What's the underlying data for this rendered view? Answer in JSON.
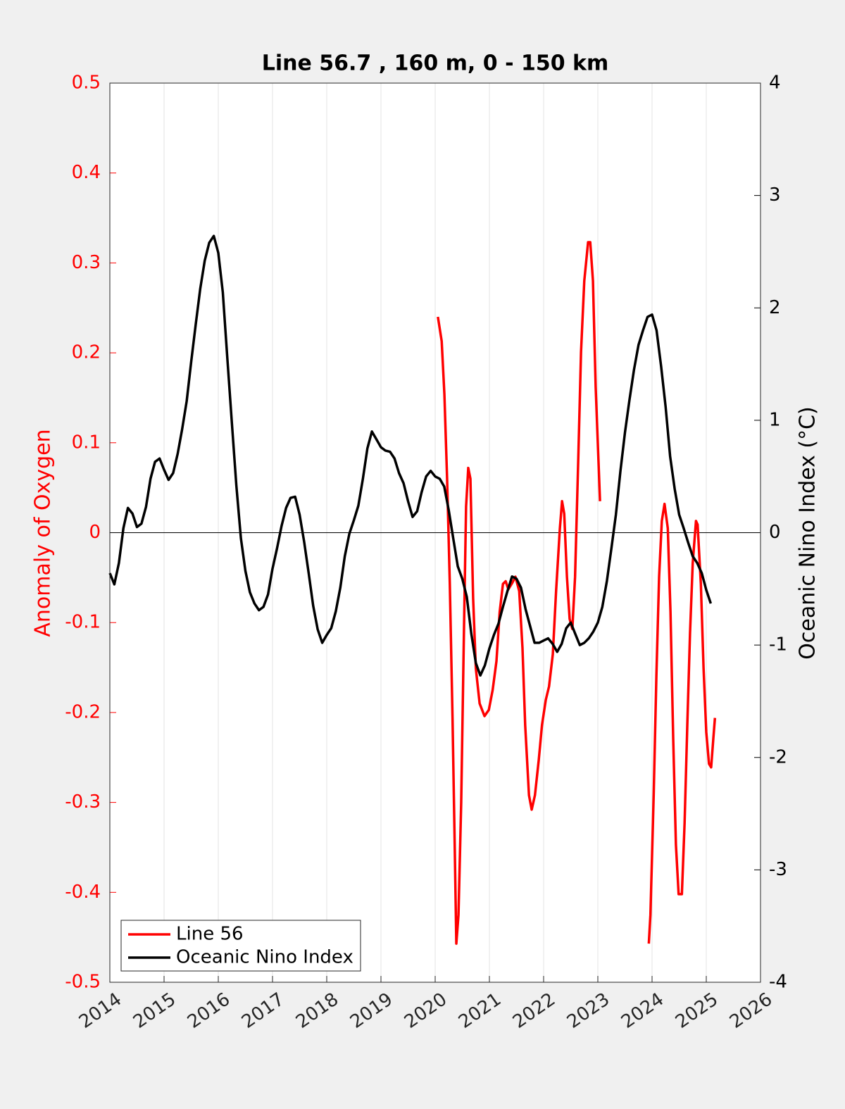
{
  "chart_data": {
    "type": "line",
    "title": "Line 56.7 , 160 m, 0 - 150 km",
    "y_label": "Anomaly of Oxygen",
    "y2_label": "Oceanic Nino Index (°C)",
    "xlim": [
      2014,
      2026
    ],
    "xticks": [
      2014,
      2015,
      2016,
      2017,
      2018,
      2019,
      2020,
      2021,
      2022,
      2023,
      2024,
      2025,
      2026
    ],
    "ylim": [
      -0.5,
      0.5
    ],
    "yticks": [
      -0.5,
      -0.4,
      -0.3,
      -0.2,
      -0.1,
      0,
      0.1,
      0.2,
      0.3,
      0.4,
      0.5
    ],
    "y2lim": [
      -4,
      4
    ],
    "y2ticks": [
      -4,
      -3,
      -2,
      -1,
      0,
      1,
      2,
      3,
      4
    ],
    "grid": "x",
    "zero_line": true,
    "legend": "southwest",
    "y_label_color": "#ff0000",
    "series": [
      {
        "name": "Line 56",
        "color": "#ff0000",
        "axis": "y",
        "x": [
          2020.05,
          2020.12,
          2020.17,
          2020.22,
          2020.27,
          2020.32,
          2020.36,
          2020.39,
          2020.43,
          2020.48,
          2020.53,
          2020.57,
          2020.61,
          2020.65,
          2020.7,
          2020.75,
          2020.82,
          2020.91,
          2020.99,
          2021.06,
          2021.13,
          2021.19,
          2021.25,
          2021.3,
          2021.35,
          2021.42,
          2021.48,
          2021.55,
          2021.61,
          2021.66,
          2021.73,
          2021.78,
          2021.84,
          2021.91,
          2021.97,
          2022.04,
          2022.1,
          2022.17,
          2022.23,
          2022.3,
          2022.34,
          2022.38,
          2022.43,
          2022.48,
          2022.53,
          2022.58,
          2022.64,
          2022.69,
          2022.75,
          2022.82,
          2022.86,
          2022.91,
          2022.96,
          2023.04,
          2023.5,
          2023.94,
          2023.97,
          2024.03,
          2024.08,
          2024.13,
          2024.18,
          2024.23,
          2024.29,
          2024.34,
          2024.39,
          2024.44,
          2024.49,
          2024.55,
          2024.6,
          2024.65,
          2024.7,
          2024.75,
          2024.81,
          2024.84,
          2024.9,
          2024.95,
          2025.0,
          2025.05,
          2025.09,
          2025.13,
          2025.16
        ],
        "values": [
          0.24,
          0.213,
          0.154,
          0.06,
          -0.057,
          -0.206,
          -0.347,
          -0.457,
          -0.425,
          -0.3,
          -0.112,
          0.029,
          0.072,
          0.06,
          -0.073,
          -0.151,
          -0.19,
          -0.204,
          -0.197,
          -0.175,
          -0.143,
          -0.088,
          -0.057,
          -0.054,
          -0.063,
          -0.056,
          -0.049,
          -0.065,
          -0.128,
          -0.214,
          -0.292,
          -0.308,
          -0.292,
          -0.253,
          -0.214,
          -0.186,
          -0.171,
          -0.135,
          -0.065,
          0.005,
          0.035,
          0.021,
          -0.049,
          -0.096,
          -0.107,
          -0.049,
          0.084,
          0.201,
          0.28,
          0.323,
          0.323,
          0.28,
          0.162,
          0.035,
          null,
          -0.457,
          -0.425,
          -0.292,
          -0.159,
          -0.049,
          0.013,
          0.032,
          0.005,
          -0.088,
          -0.229,
          -0.347,
          -0.402,
          -0.402,
          -0.323,
          -0.214,
          -0.112,
          -0.034,
          0.013,
          0.009,
          -0.057,
          -0.151,
          -0.222,
          -0.257,
          -0.261,
          -0.229,
          -0.206
        ]
      },
      {
        "name": "Oceanic Nino Index",
        "color": "#000000",
        "axis": "y2",
        "x": [
          2014,
          2014.083,
          2014.167,
          2014.25,
          2014.333,
          2014.417,
          2014.5,
          2014.583,
          2014.667,
          2014.75,
          2014.833,
          2014.917,
          2015,
          2015.083,
          2015.167,
          2015.25,
          2015.333,
          2015.417,
          2015.5,
          2015.583,
          2015.667,
          2015.75,
          2015.833,
          2015.917,
          2016,
          2016.083,
          2016.167,
          2016.25,
          2016.333,
          2016.417,
          2016.5,
          2016.583,
          2016.667,
          2016.75,
          2016.833,
          2016.917,
          2017,
          2017.083,
          2017.167,
          2017.25,
          2017.333,
          2017.417,
          2017.5,
          2017.583,
          2017.667,
          2017.75,
          2017.833,
          2017.917,
          2018,
          2018.083,
          2018.167,
          2018.25,
          2018.333,
          2018.417,
          2018.5,
          2018.583,
          2018.667,
          2018.75,
          2018.833,
          2018.917,
          2019,
          2019.083,
          2019.167,
          2019.25,
          2019.333,
          2019.417,
          2019.5,
          2019.583,
          2019.667,
          2019.75,
          2019.833,
          2019.917,
          2020,
          2020.083,
          2020.167,
          2020.25,
          2020.333,
          2020.417,
          2020.5,
          2020.583,
          2020.667,
          2020.75,
          2020.833,
          2020.917,
          2021,
          2021.083,
          2021.167,
          2021.25,
          2021.333,
          2021.417,
          2021.5,
          2021.583,
          2021.667,
          2021.75,
          2021.833,
          2021.917,
          2022,
          2022.083,
          2022.167,
          2022.25,
          2022.333,
          2022.417,
          2022.5,
          2022.583,
          2022.667,
          2022.75,
          2022.833,
          2022.917,
          2023,
          2023.083,
          2023.167,
          2023.25,
          2023.333,
          2023.417,
          2023.5,
          2023.583,
          2023.667,
          2023.75,
          2023.833,
          2023.917,
          2024,
          2024.083,
          2024.167,
          2024.25,
          2024.333,
          2024.417,
          2024.5,
          2024.583,
          2024.667,
          2024.75,
          2024.833,
          2024.917,
          2025,
          2025.083
        ],
        "values": [
          -0.36,
          -0.46,
          -0.27,
          0.04,
          0.22,
          0.17,
          0.05,
          0.08,
          0.23,
          0.48,
          0.63,
          0.66,
          0.56,
          0.47,
          0.53,
          0.7,
          0.92,
          1.17,
          1.52,
          1.85,
          2.17,
          2.42,
          2.58,
          2.64,
          2.49,
          2.14,
          1.55,
          0.98,
          0.42,
          -0.05,
          -0.34,
          -0.53,
          -0.63,
          -0.69,
          -0.66,
          -0.55,
          -0.32,
          -0.14,
          0.06,
          0.22,
          0.31,
          0.32,
          0.16,
          -0.08,
          -0.36,
          -0.65,
          -0.86,
          -0.98,
          -0.91,
          -0.85,
          -0.7,
          -0.49,
          -0.21,
          -0.01,
          0.11,
          0.24,
          0.48,
          0.75,
          0.9,
          0.83,
          0.76,
          0.73,
          0.72,
          0.66,
          0.53,
          0.44,
          0.28,
          0.14,
          0.19,
          0.36,
          0.5,
          0.55,
          0.5,
          0.48,
          0.41,
          0.2,
          -0.05,
          -0.3,
          -0.41,
          -0.57,
          -0.9,
          -1.16,
          -1.27,
          -1.18,
          -1.03,
          -0.91,
          -0.81,
          -0.66,
          -0.52,
          -0.39,
          -0.41,
          -0.49,
          -0.68,
          -0.83,
          -0.98,
          -0.98,
          -0.96,
          -0.94,
          -0.99,
          -1.06,
          -0.99,
          -0.85,
          -0.8,
          -0.9,
          -1.0,
          -0.98,
          -0.94,
          -0.88,
          -0.8,
          -0.66,
          -0.43,
          -0.14,
          0.16,
          0.55,
          0.89,
          1.18,
          1.45,
          1.67,
          1.8,
          1.92,
          1.94,
          1.8,
          1.48,
          1.12,
          0.68,
          0.39,
          0.16,
          0.04,
          -0.09,
          -0.21,
          -0.27,
          -0.36,
          -0.51,
          -0.63
        ]
      }
    ]
  }
}
